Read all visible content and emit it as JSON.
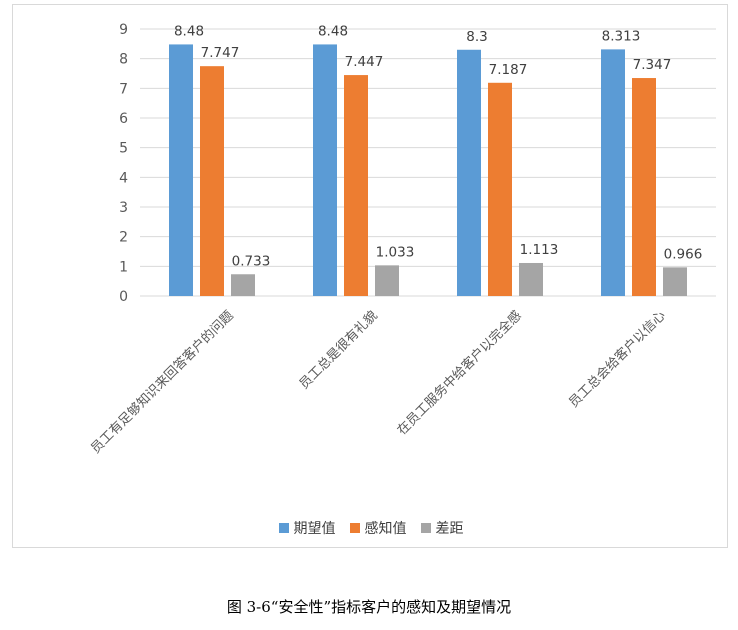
{
  "chart_data": {
    "type": "bar",
    "categories": [
      "员工有足够知识来回答客户的问题",
      "员工总是很有礼貌",
      "在员工服务中给客户以完全感",
      "员工总会给客户以信心"
    ],
    "series": [
      {
        "name": "期望值",
        "color": "#5B9BD5",
        "values": [
          8.48,
          8.48,
          8.3,
          8.313
        ],
        "labels": [
          "8.48",
          "8.48",
          "8.3",
          "8.313"
        ]
      },
      {
        "name": "感知值",
        "color": "#ED7D31",
        "values": [
          7.747,
          7.447,
          7.187,
          7.347
        ],
        "labels": [
          "7.747",
          "7.447",
          "7.187",
          "7.347"
        ]
      },
      {
        "name": "差距",
        "color": "#A5A5A5",
        "values": [
          0.733,
          1.033,
          1.113,
          0.966
        ],
        "labels": [
          "0.733",
          "1.033",
          "1.113",
          "0.966"
        ]
      }
    ],
    "ylim": [
      0,
      9
    ],
    "yticks": [
      "0",
      "1",
      "2",
      "3",
      "4",
      "5",
      "6",
      "7",
      "8",
      "9"
    ],
    "grid": true,
    "legend": "bottom",
    "title": "",
    "xlabel": "",
    "ylabel": ""
  },
  "caption": "图 3-6“安全性”指标客户的感知及期望情况"
}
